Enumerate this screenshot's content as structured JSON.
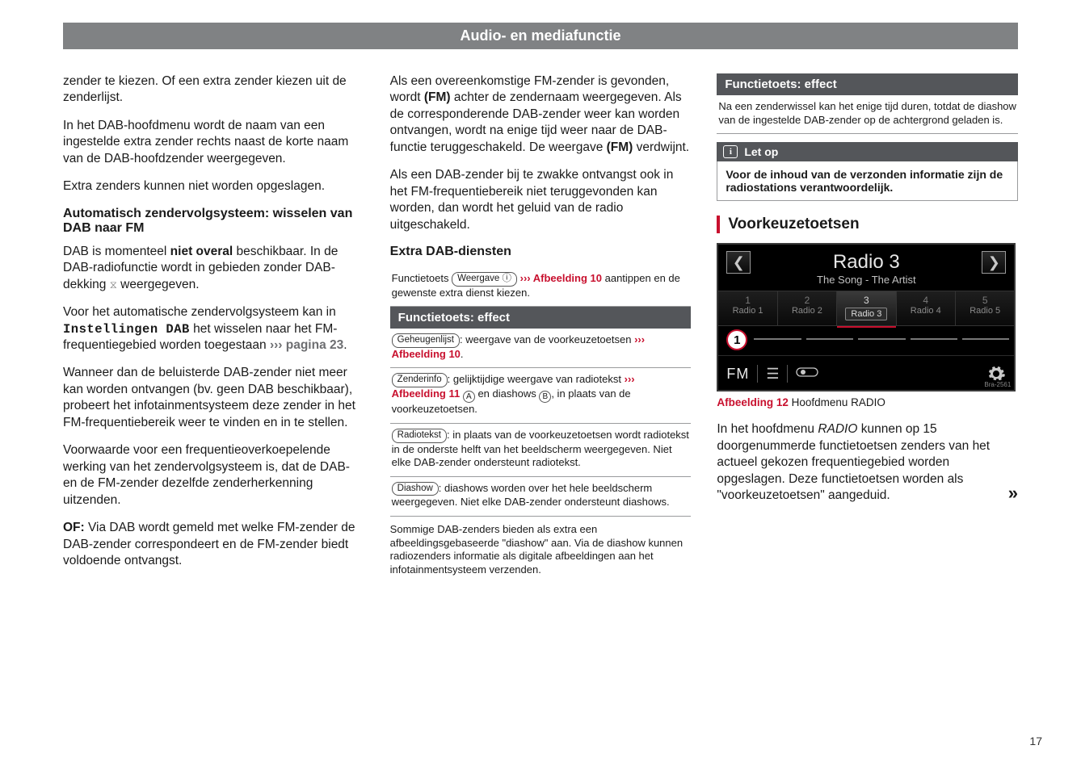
{
  "header": "Audio- en mediafunctie",
  "page_number": "17",
  "col1": {
    "p1": "zender te kiezen. Of een extra zender kiezen uit de zenderlijst.",
    "p2": "In het DAB-hoofdmenu wordt de naam van een ingestelde extra zender rechts naast de korte naam van de DAB-hoofdzender weergegeven.",
    "p3": "Extra zenders kunnen niet worden opgeslagen.",
    "h1": "Automatisch zendervolgsysteem: wisselen van DAB naar FM",
    "p4a": "DAB is momenteel ",
    "p4b": "niet overal",
    "p4c": " beschikbaar. In de DAB-radiofunctie wordt in gebieden zonder DAB-dekking ",
    "p4d": " weergegeven.",
    "p5a": "Voor het automatische zendervolgsysteem kan in ",
    "p5b": "Instellingen DAB",
    "p5c": " het wisselen naar het FM-frequentiegebied worden toegestaan ",
    "p5d": "››› pagina 23",
    "p5e": ".",
    "p6": "Wanneer dan de beluisterde DAB-zender niet meer kan worden ontvangen (bv. geen DAB beschikbaar), probeert het infotainmentsysteem deze zender in het FM-frequentiebereik weer te vinden en in te stellen.",
    "p7": "Voorwaarde voor een frequentieoverkoepelende werking van het zendervolgsysteem is, dat de DAB- en de FM-zender dezelfde zenderherkenning uitzenden.",
    "p8a": "OF:",
    "p8b": " Via DAB wordt gemeld met welke FM-zender de DAB-zender correspondeert en de FM-zender biedt voldoende ontvangst."
  },
  "col2": {
    "p1a": "Als een overeenkomstige FM-zender is gevonden, wordt ",
    "p1b": "(FM)",
    "p1c": " achter de zendernaam weergegeven. Als de corresponderende DAB-zender weer kan worden ontvangen, wordt na enige tijd weer naar de DAB-functie teruggeschakeld. De weergave ",
    "p1d": "(FM)",
    "p1e": " verdwijnt.",
    "p2": "Als een DAB-zender bij te zwakke ontvangst ook in het FM-frequentiebereik niet teruggevonden kan worden, dan wordt het geluid van de radio uitgeschakeld.",
    "h1": "Extra DAB-diensten",
    "s1a": "Functietoets ",
    "s1key": "Weergave ⓘ",
    "s1b": "››› Afbeelding 10",
    "s1c": " aantippen en de gewenste extra dienst kiezen.",
    "bar": "Functietoets: effect",
    "r1key": "Geheugenlijst",
    "r1a": ": weergave van de voorkeuzetoetsen ",
    "r1b": "››› Afbeelding 10",
    "r1c": ".",
    "r2key": "Zenderinfo",
    "r2a": ": gelijktijdige weergave van radiotekst ",
    "r2b": "››› Afbeelding 11",
    "r2c": " en diashows ",
    "r2d": ", in plaats van de voorkeuzetoetsen.",
    "r3key": "Radiotekst",
    "r3a": ": in plaats van de voorkeuzetoetsen wordt radiotekst in de onderste helft van het beeldscherm weergegeven. Niet elke DAB-zender ondersteunt radiotekst.",
    "r4key": "Diashow",
    "r4a": ": diashows worden over het hele beeldscherm weergegeven. Niet elke DAB-zender ondersteunt diashows.",
    "s2": "Sommige DAB-zenders bieden als extra een afbeeldingsgebaseerde \"diashow\" aan. Via de diashow kunnen radiozenders informatie als digitale afbeeldingen aan het infotainmentsysteem verzenden."
  },
  "col3": {
    "bar": "Functietoets: effect",
    "r1": "Na een zenderwissel kan het enige tijd duren, totdat de diashow van de ingestelde DAB-zender op de achtergrond geladen is.",
    "note_title": "Let op",
    "note_body": "Voor de inhoud van de verzonden informatie zijn de radiostations verantwoordelijk.",
    "section": "Voorkeuzetoetsen",
    "fig": {
      "title": "Radio 3",
      "subtitle": "The Song - The Artist",
      "presets": [
        {
          "n": "1",
          "name": "Radio 1"
        },
        {
          "n": "2",
          "name": "Radio 2"
        },
        {
          "n": "3",
          "name": "Radio 3"
        },
        {
          "n": "4",
          "name": "Radio 4"
        },
        {
          "n": "5",
          "name": "Radio 5"
        }
      ],
      "selected_index": 2,
      "callout": "1",
      "band": "FM",
      "code": "Bra-2561"
    },
    "caption_a": "Afbeelding 12",
    "caption_b": "  Hoofdmenu RADIO",
    "body1": "In het hoofdmenu RADIO kunnen op 15 doorgenummerde functietoetsen zenders van het actueel gekozen frequentiegebied worden opgeslagen. Deze functietoetsen worden als \"voorkeuzetoetsen\" aangeduid.",
    "cont": "»"
  }
}
